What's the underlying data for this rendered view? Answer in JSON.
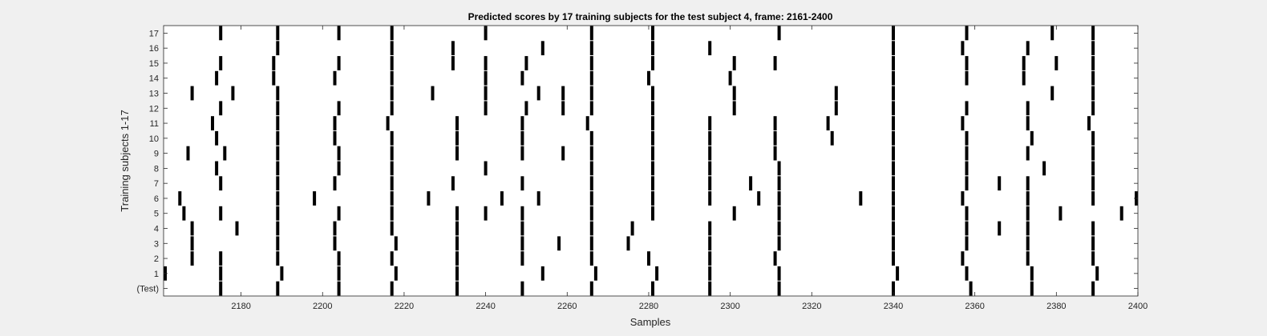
{
  "chart_data": {
    "type": "raster",
    "title": "Predicted scores by 17 training subjects for the test subject 4, frame: 2161-2400",
    "xlabel": "Samples",
    "ylabel": "Training subjects 1-17",
    "xlim": [
      2161,
      2400
    ],
    "x_ticks": [
      2180,
      2200,
      2220,
      2240,
      2260,
      2280,
      2300,
      2320,
      2340,
      2360,
      2380,
      2400
    ],
    "rows": [
      {
        "label": "17",
        "spikes": [
          2175,
          2189,
          2204,
          2217,
          2240,
          2266,
          2281,
          2312,
          2340,
          2358,
          2379,
          2389
        ]
      },
      {
        "label": "16",
        "spikes": [
          2189,
          2217,
          2232,
          2254,
          2266,
          2281,
          2295,
          2340,
          2357,
          2373,
          2389
        ]
      },
      {
        "label": "15",
        "spikes": [
          2175,
          2188,
          2204,
          2217,
          2232,
          2240,
          2250,
          2266,
          2281,
          2301,
          2311,
          2340,
          2358,
          2372,
          2380,
          2389
        ]
      },
      {
        "label": "14",
        "spikes": [
          2174,
          2188,
          2203,
          2217,
          2240,
          2249,
          2266,
          2280,
          2300,
          2340,
          2358,
          2372,
          2389
        ]
      },
      {
        "label": "13",
        "spikes": [
          2168,
          2178,
          2189,
          2217,
          2227,
          2240,
          2253,
          2259,
          2266,
          2281,
          2301,
          2326,
          2340,
          2379,
          2389
        ]
      },
      {
        "label": "12",
        "spikes": [
          2175,
          2189,
          2204,
          2217,
          2240,
          2250,
          2259,
          2266,
          2281,
          2301,
          2326,
          2340,
          2358,
          2373,
          2389
        ]
      },
      {
        "label": "11",
        "spikes": [
          2173,
          2189,
          2203,
          2216,
          2233,
          2249,
          2265,
          2281,
          2295,
          2311,
          2324,
          2340,
          2357,
          2373,
          2388
        ]
      },
      {
        "label": "10",
        "spikes": [
          2174,
          2189,
          2203,
          2217,
          2233,
          2249,
          2266,
          2281,
          2295,
          2311,
          2325,
          2340,
          2358,
          2374,
          2389
        ]
      },
      {
        "label": "9",
        "spikes": [
          2167,
          2176,
          2189,
          2204,
          2217,
          2233,
          2249,
          2259,
          2266,
          2281,
          2295,
          2311,
          2340,
          2358,
          2373,
          2389
        ]
      },
      {
        "label": "8",
        "spikes": [
          2174,
          2189,
          2204,
          2217,
          2240,
          2266,
          2281,
          2295,
          2312,
          2340,
          2358,
          2377,
          2389
        ]
      },
      {
        "label": "7",
        "spikes": [
          2175,
          2189,
          2203,
          2217,
          2232,
          2249,
          2266,
          2281,
          2295,
          2305,
          2312,
          2340,
          2358,
          2366,
          2373,
          2389
        ]
      },
      {
        "label": "6",
        "spikes": [
          2165,
          2189,
          2198,
          2217,
          2226,
          2244,
          2253,
          2266,
          2281,
          2295,
          2307,
          2312,
          2332,
          2340,
          2357,
          2373,
          2389,
          2400
        ]
      },
      {
        "label": "5",
        "spikes": [
          2166,
          2175,
          2189,
          2204,
          2217,
          2233,
          2240,
          2249,
          2266,
          2281,
          2301,
          2312,
          2340,
          2358,
          2373,
          2381,
          2396
        ]
      },
      {
        "label": "4",
        "spikes": [
          2168,
          2179,
          2189,
          2203,
          2217,
          2233,
          2249,
          2266,
          2276,
          2295,
          2312,
          2340,
          2358,
          2366,
          2373,
          2389
        ]
      },
      {
        "label": "3",
        "spikes": [
          2168,
          2189,
          2203,
          2218,
          2233,
          2249,
          2258,
          2266,
          2275,
          2295,
          2312,
          2340,
          2358,
          2373,
          2389
        ]
      },
      {
        "label": "2",
        "spikes": [
          2168,
          2175,
          2189,
          2204,
          2217,
          2233,
          2249,
          2266,
          2280,
          2295,
          2311,
          2340,
          2357,
          2373,
          2389
        ]
      },
      {
        "label": "1",
        "spikes": [
          2161,
          2175,
          2190,
          2204,
          2218,
          2233,
          2254,
          2267,
          2282,
          2295,
          2312,
          2341,
          2358,
          2374,
          2390
        ]
      },
      {
        "label": "(Test)",
        "spikes": [
          2175,
          2189,
          2204,
          2217,
          2233,
          2249,
          2266,
          2281,
          2295,
          2312,
          2340,
          2359,
          2374,
          2389
        ]
      }
    ]
  }
}
